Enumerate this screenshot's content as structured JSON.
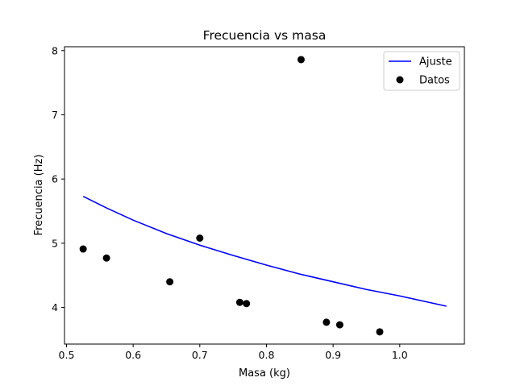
{
  "chart_data": {
    "type": "scatter",
    "title": "Frecuencia vs masa",
    "xlabel": "Masa (kg)",
    "ylabel": "Frecuencia (Hz)",
    "xlim": [
      0.497,
      1.097
    ],
    "ylim": [
      3.43,
      8.06
    ],
    "xticks": [
      0.5,
      0.6,
      0.7,
      0.8,
      0.9,
      1.0
    ],
    "xtick_labels": [
      "0.5",
      "0.6",
      "0.7",
      "0.8",
      "0.9",
      "1.0"
    ],
    "yticks": [
      4,
      5,
      6,
      7,
      8
    ],
    "ytick_labels": [
      "4",
      "5",
      "6",
      "7",
      "8"
    ],
    "grid": false,
    "legend_position": "top-right",
    "series": [
      {
        "name": "Ajuste",
        "kind": "line",
        "color": "#0000ff",
        "x": [
          0.525,
          0.56,
          0.6,
          0.65,
          0.7,
          0.75,
          0.8,
          0.85,
          0.9,
          0.95,
          1.0,
          1.07
        ],
        "y": [
          5.73,
          5.55,
          5.36,
          5.15,
          4.97,
          4.81,
          4.66,
          4.52,
          4.4,
          4.28,
          4.18,
          4.02
        ]
      },
      {
        "name": "Datos",
        "kind": "scatter",
        "color": "#000000",
        "x": [
          0.525,
          0.56,
          0.655,
          0.7,
          0.76,
          0.77,
          0.852,
          0.89,
          0.91,
          0.97
        ],
        "y": [
          4.91,
          4.77,
          4.4,
          5.08,
          4.08,
          4.06,
          7.86,
          3.77,
          3.73,
          3.62
        ]
      }
    ]
  }
}
